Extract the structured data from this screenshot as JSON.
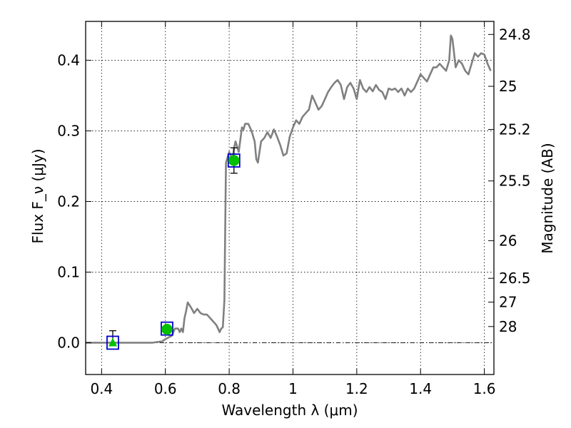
{
  "chart_data": {
    "type": "line",
    "xlabel": "Wavelength λ (μm)",
    "ylabel": "Flux F_ν (μJy)",
    "y2label": "Magnitude (AB)",
    "xlim": [
      0.35,
      1.63
    ],
    "ylim": [
      -0.045,
      0.455
    ],
    "grid": true,
    "x_ticks": [
      0.4,
      0.6,
      0.8,
      1.0,
      1.2,
      1.4,
      1.6
    ],
    "x_tick_labels": [
      "0.4",
      "0.6",
      "0.8",
      "1",
      "1.2",
      "1.4",
      "1.6"
    ],
    "y_ticks": [
      0.0,
      0.1,
      0.2,
      0.3,
      0.4
    ],
    "y_tick_labels": [
      "0.0",
      "0.1",
      "0.2",
      "0.3",
      "0.4"
    ],
    "mag_ticks": [
      "24.8",
      "25",
      "25.2",
      "25.5",
      "26",
      "26.5",
      "27",
      "28"
    ],
    "colors": {
      "spectrum": "#808080",
      "detection": "#00c000",
      "filter_box": "#0000cc",
      "errorbar": "#000000",
      "grid": "#000000",
      "zero_line": "#000000"
    },
    "series": [
      {
        "type": "line",
        "x": [
          0.35,
          0.56,
          0.59,
          0.6,
          0.62,
          0.63,
          0.64,
          0.645,
          0.65,
          0.655,
          0.66,
          0.665,
          0.67,
          0.68,
          0.69,
          0.7,
          0.71,
          0.72,
          0.73,
          0.74,
          0.75,
          0.76,
          0.77,
          0.775,
          0.78,
          0.785,
          0.79,
          0.8,
          0.81,
          0.815,
          0.82,
          0.83,
          0.84,
          0.845,
          0.85,
          0.86,
          0.87,
          0.88,
          0.885,
          0.89,
          0.9,
          0.91,
          0.92,
          0.93,
          0.94,
          0.95,
          0.96,
          0.97,
          0.98,
          0.99,
          1.0,
          1.01,
          1.02,
          1.03,
          1.04,
          1.05,
          1.06,
          1.07,
          1.08,
          1.09,
          1.1,
          1.11,
          1.12,
          1.13,
          1.14,
          1.15,
          1.16,
          1.17,
          1.18,
          1.19,
          1.2,
          1.21,
          1.22,
          1.23,
          1.24,
          1.25,
          1.26,
          1.27,
          1.28,
          1.29,
          1.3,
          1.31,
          1.32,
          1.33,
          1.34,
          1.35,
          1.36,
          1.37,
          1.38,
          1.39,
          1.4,
          1.41,
          1.42,
          1.43,
          1.44,
          1.45,
          1.46,
          1.47,
          1.48,
          1.49,
          1.495,
          1.5,
          1.51,
          1.52,
          1.53,
          1.54,
          1.55,
          1.56,
          1.57,
          1.58,
          1.59,
          1.6,
          1.61,
          1.62
        ],
        "y": [
          0.0,
          0.0,
          0.002,
          0.005,
          0.01,
          0.02,
          0.02,
          0.015,
          0.02,
          0.015,
          0.035,
          0.045,
          0.057,
          0.05,
          0.042,
          0.048,
          0.042,
          0.04,
          0.04,
          0.035,
          0.03,
          0.025,
          0.015,
          0.02,
          0.022,
          0.06,
          0.255,
          0.27,
          0.26,
          0.275,
          0.285,
          0.27,
          0.305,
          0.302,
          0.31,
          0.31,
          0.3,
          0.285,
          0.26,
          0.255,
          0.285,
          0.29,
          0.298,
          0.29,
          0.302,
          0.292,
          0.28,
          0.265,
          0.268,
          0.292,
          0.305,
          0.315,
          0.31,
          0.32,
          0.325,
          0.33,
          0.35,
          0.34,
          0.33,
          0.335,
          0.345,
          0.355,
          0.362,
          0.368,
          0.372,
          0.365,
          0.345,
          0.362,
          0.368,
          0.36,
          0.345,
          0.372,
          0.36,
          0.355,
          0.362,
          0.356,
          0.365,
          0.358,
          0.355,
          0.345,
          0.36,
          0.358,
          0.36,
          0.355,
          0.36,
          0.35,
          0.36,
          0.355,
          0.36,
          0.37,
          0.38,
          0.375,
          0.37,
          0.38,
          0.39,
          0.39,
          0.395,
          0.39,
          0.385,
          0.4,
          0.435,
          0.43,
          0.39,
          0.4,
          0.395,
          0.385,
          0.38,
          0.395,
          0.41,
          0.405,
          0.41,
          0.408,
          0.395,
          0.385
        ]
      },
      {
        "type": "filter_boxes",
        "x": [
          0.435,
          0.605,
          0.815
        ],
        "y": [
          0.0,
          0.02,
          0.258
        ]
      },
      {
        "type": "detections",
        "x": [
          0.605,
          0.815
        ],
        "y": [
          0.019,
          0.258
        ]
      },
      {
        "type": "upper_limit",
        "x": [
          0.435
        ],
        "y": [
          0.0
        ],
        "error": [
          0.017
        ]
      },
      {
        "type": "errorbars",
        "x": [
          0.815
        ],
        "y": [
          0.258
        ],
        "error": [
          0.018
        ]
      }
    ]
  }
}
